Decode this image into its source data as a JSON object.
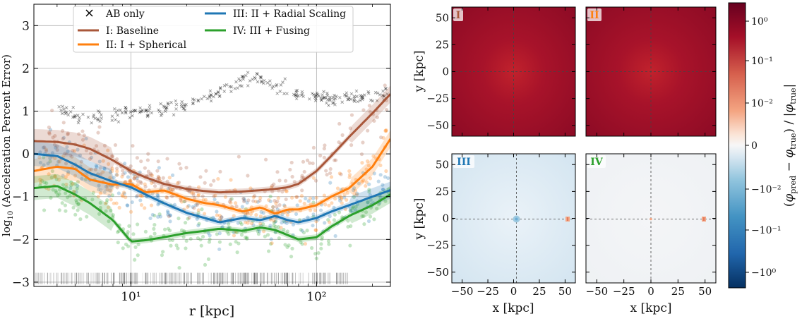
{
  "chart_data": [
    {
      "type": "scatter",
      "xlabel": "r [kpc]",
      "ylabel": "log10 (Acceleration Percent Error)",
      "xscale": "log",
      "xlim": [
        3,
        250
      ],
      "ylim": [
        -3.1,
        3.5
      ],
      "grid": true,
      "x_ticks": [
        10,
        100
      ],
      "x_tick_labels": [
        "10¹",
        "10²"
      ],
      "y_ticks": [
        -3,
        -2,
        -1,
        0,
        1,
        2,
        3
      ],
      "legend_position": "top",
      "legend": [
        {
          "label": "AB only",
          "marker": "x",
          "color": "#000000"
        },
        {
          "label": "I: Baseline",
          "marker": "line",
          "color": "#a9573a"
        },
        {
          "label": "II: I + Spherical",
          "marker": "line",
          "color": "#ff7f0e"
        },
        {
          "label": "III: II + Radial Scaling",
          "marker": "line",
          "color": "#1f77b4"
        },
        {
          "label": "IV: III + Fusing",
          "marker": "line",
          "color": "#2ca02c"
        }
      ],
      "series": [
        {
          "name": "I: Baseline",
          "color": "#a9573a",
          "x": [
            3,
            4,
            5,
            6,
            8,
            10,
            12,
            15,
            20,
            25,
            30,
            40,
            50,
            60,
            70,
            80,
            100,
            120,
            150,
            200,
            250
          ],
          "y": [
            0.3,
            0.28,
            0.22,
            0.12,
            -0.15,
            -0.4,
            -0.55,
            -0.7,
            -0.82,
            -0.87,
            -0.9,
            -0.88,
            -0.85,
            -0.82,
            -0.78,
            -0.7,
            -0.4,
            -0.05,
            0.4,
            0.95,
            1.4
          ]
        },
        {
          "name": "II: I + Spherical",
          "color": "#ff7f0e",
          "x": [
            3,
            4,
            5,
            6,
            8,
            10,
            12,
            15,
            20,
            25,
            30,
            40,
            50,
            60,
            70,
            80,
            100,
            120,
            150,
            200,
            250
          ],
          "y": [
            -0.4,
            -0.3,
            -0.35,
            -0.6,
            -0.72,
            -0.7,
            -0.9,
            -0.85,
            -1.05,
            -1.15,
            -1.2,
            -1.35,
            -1.25,
            -1.4,
            -1.3,
            -1.3,
            -1.2,
            -1.0,
            -0.8,
            -0.3,
            0.35
          ]
        },
        {
          "name": "III: II + Radial Scaling",
          "color": "#1f77b4",
          "x": [
            3,
            4,
            5,
            6,
            8,
            10,
            12,
            15,
            20,
            25,
            30,
            40,
            50,
            60,
            70,
            80,
            100,
            120,
            150,
            200,
            250
          ],
          "y": [
            0.0,
            -0.05,
            -0.25,
            -0.45,
            -0.65,
            -0.78,
            -0.95,
            -1.15,
            -1.38,
            -1.5,
            -1.6,
            -1.5,
            -1.55,
            -1.45,
            -1.55,
            -1.6,
            -1.5,
            -1.35,
            -1.2,
            -1.0,
            -0.85
          ]
        },
        {
          "name": "IV: III + Fusing",
          "color": "#2ca02c",
          "x": [
            3,
            4,
            5,
            6,
            8,
            10,
            12,
            15,
            20,
            25,
            30,
            40,
            50,
            60,
            70,
            80,
            100,
            120,
            150,
            200,
            250
          ],
          "y": [
            -0.8,
            -0.75,
            -0.95,
            -1.15,
            -1.55,
            -2.05,
            -2.02,
            -1.95,
            -1.85,
            -1.8,
            -1.75,
            -1.8,
            -1.72,
            -1.78,
            -1.9,
            -2.0,
            -1.95,
            -1.7,
            -1.45,
            -1.2,
            -0.95
          ]
        },
        {
          "name": "AB only",
          "color": "#000000",
          "marker": "x",
          "x": [
            4,
            5,
            6,
            7,
            8,
            10,
            12,
            15,
            20,
            25,
            30,
            35,
            40,
            45,
            50,
            60,
            70,
            80,
            100,
            120,
            150,
            200,
            250
          ],
          "y": [
            1.0,
            0.9,
            0.85,
            0.9,
            0.9,
            0.95,
            0.98,
            1.05,
            1.15,
            1.3,
            1.45,
            1.6,
            1.75,
            1.8,
            1.75,
            1.6,
            1.5,
            1.4,
            1.35,
            1.3,
            1.3,
            1.35,
            1.4
          ]
        }
      ]
    },
    {
      "type": "heatmap",
      "panels": [
        {
          "label": "I",
          "color": "#a9573a",
          "value_level": "high",
          "xlabel": "",
          "ylabel": "y [kpc]"
        },
        {
          "label": "II",
          "color": "#ff7f0e",
          "value_level": "high",
          "xlabel": "",
          "ylabel": ""
        },
        {
          "label": "III",
          "color": "#1f77b4",
          "value_level": "low",
          "xlabel": "x [kpc]",
          "ylabel": "y [kpc]"
        },
        {
          "label": "IV",
          "color": "#2ca02c",
          "value_level": "near-zero",
          "xlabel": "x [kpc]",
          "ylabel": ""
        }
      ],
      "xlim": [
        -60,
        60
      ],
      "ylim": [
        -60,
        60
      ],
      "x_ticks": [
        -50,
        -25,
        0,
        25,
        50
      ],
      "y_ticks": [
        50,
        25,
        0,
        -25,
        -50
      ],
      "x_tick_labels": [
        "−50",
        "−25",
        "0",
        "25",
        "50"
      ],
      "y_tick_labels": [
        "50",
        "25",
        "0",
        "−25",
        "−50"
      ],
      "colorbar": {
        "label": "(φpred − φtrue) / |φtrue|",
        "label_parts": {
          "open": "(",
          "phi": "φ",
          "pred": "pred",
          "minus": "−",
          "true": "true",
          "slash": ") / |",
          "close": "|"
        },
        "scale": "symlog",
        "ticks": [
          "10⁰",
          "10⁻¹",
          "10⁻²",
          "0",
          "−10⁻²",
          "−10⁻¹",
          "−10⁰"
        ],
        "colormap": "RdBu_r"
      }
    }
  ]
}
